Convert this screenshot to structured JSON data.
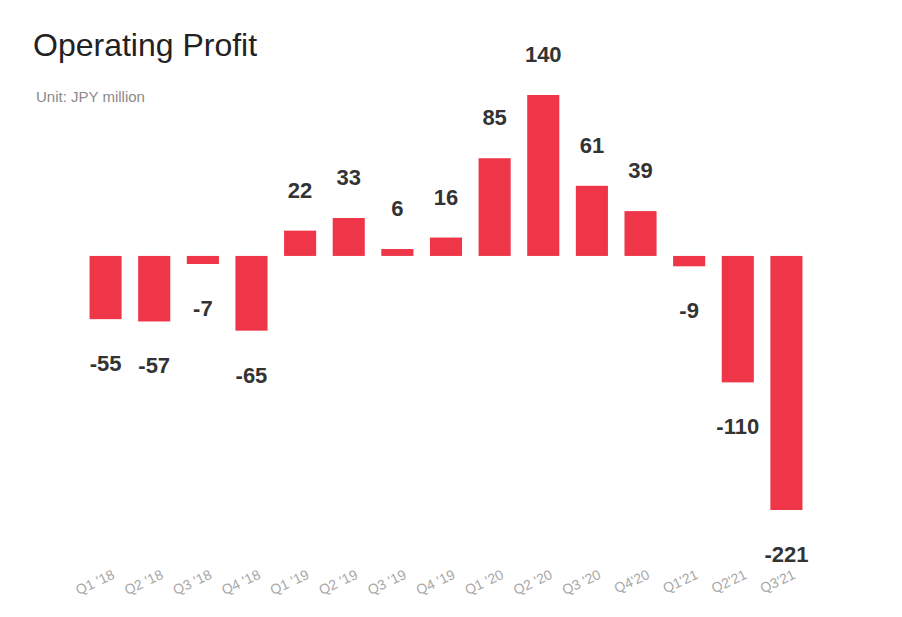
{
  "chart_data": {
    "type": "bar",
    "title": "Operating Profit",
    "subtitle": "Unit: JPY million",
    "categories": [
      "Q1 '18",
      "Q2 '18",
      "Q3 '18",
      "Q4 '18",
      "Q1 '19",
      "Q2 '19",
      "Q3 '19",
      "Q4 '19",
      "Q1 '20",
      "Q2 '20",
      "Q3 '20",
      "Q4'20",
      "Q1'21",
      "Q2'21",
      "Q3'21"
    ],
    "values": [
      -55,
      -57,
      -7,
      -65,
      22,
      33,
      6,
      16,
      85,
      140,
      61,
      39,
      -9,
      -110,
      -221
    ],
    "color": "#ef3648",
    "ylim": [
      -221,
      140
    ],
    "grid": false,
    "data_labels": true,
    "tick_labels": "x"
  }
}
